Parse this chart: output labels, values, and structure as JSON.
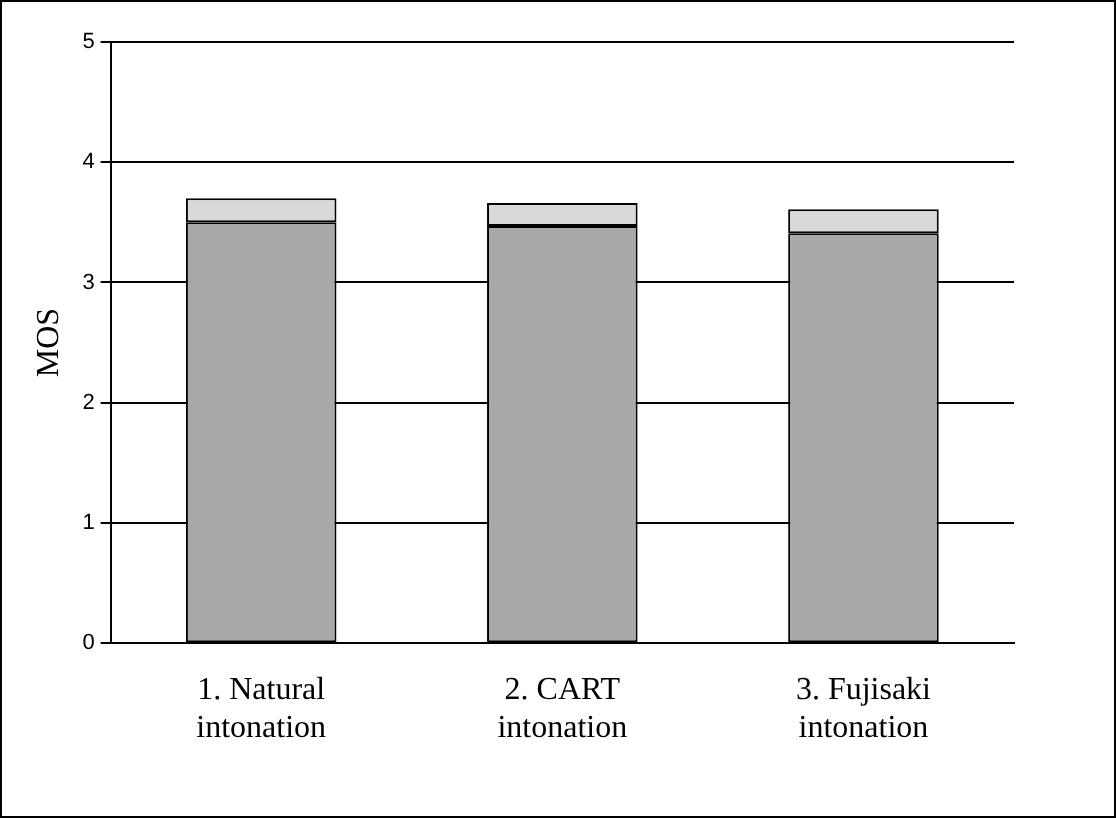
{
  "chart_data": {
    "type": "bar",
    "stacked": true,
    "ylabel": "MOS",
    "categories": [
      "1. Natural\nintonation",
      "2. CART\nintonation",
      "3. Fujisaki\nintonation"
    ],
    "series": [
      {
        "color": "#a8a8a8",
        "values": [
          3.5,
          3.47,
          3.41
        ]
      },
      {
        "color": "#d9d9d9",
        "values": [
          0.2,
          0.19,
          0.2
        ]
      }
    ],
    "ylim": [
      0,
      5
    ],
    "yticks": [
      0,
      1,
      2,
      3,
      4,
      5
    ],
    "grid": "y",
    "legend": false
  }
}
